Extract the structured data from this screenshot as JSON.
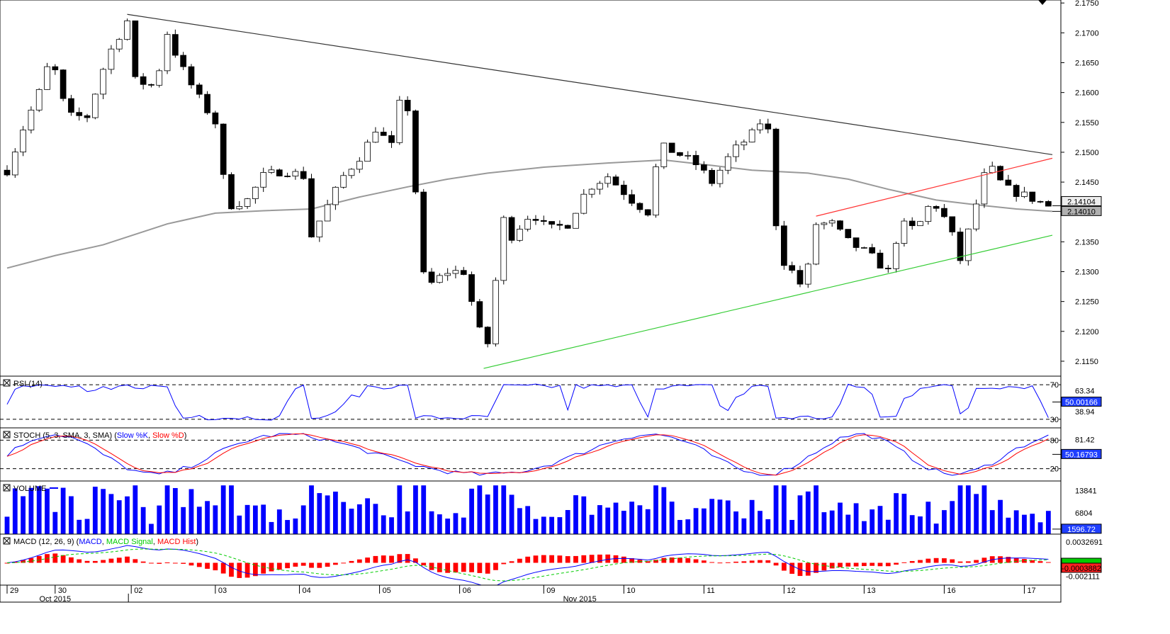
{
  "chart_data": [
    {
      "type": "candlestick",
      "instrument_panel": "price",
      "y_ticks": [
        "2.1750",
        "2.1700",
        "2.1650",
        "2.1600",
        "2.1550",
        "2.1500",
        "2.1450",
        "2.1350",
        "2.1300",
        "2.1250",
        "2.1200",
        "2.1150"
      ],
      "y_tick_values": [
        2.175,
        2.17,
        2.165,
        2.16,
        2.155,
        2.15,
        2.145,
        2.135,
        2.13,
        2.125,
        2.12,
        2.115
      ],
      "ylim": [
        2.1125,
        2.1755
      ],
      "price_labels": [
        {
          "text": "2.14104",
          "value": 2.14104,
          "style": "boxed"
        },
        {
          "text": "2.14010",
          "value": 2.1401,
          "style": "filled-gray"
        }
      ],
      "moving_average": [
        {
          "x": 0,
          "y": 2.1306
        },
        {
          "x": 0.6,
          "y": 2.1327
        },
        {
          "x": 1.2,
          "y": 2.1345
        },
        {
          "x": 2.0,
          "y": 2.138
        },
        {
          "x": 2.6,
          "y": 2.1398
        },
        {
          "x": 3.2,
          "y": 2.1402
        },
        {
          "x": 3.8,
          "y": 2.1405
        },
        {
          "x": 4.4,
          "y": 2.1425
        },
        {
          "x": 5.0,
          "y": 2.1442
        },
        {
          "x": 5.5,
          "y": 2.1455
        },
        {
          "x": 6.0,
          "y": 2.1465
        },
        {
          "x": 6.7,
          "y": 2.1475
        },
        {
          "x": 7.5,
          "y": 2.1482
        },
        {
          "x": 8.2,
          "y": 2.1487
        },
        {
          "x": 8.8,
          "y": 2.1478
        },
        {
          "x": 9.3,
          "y": 2.147
        },
        {
          "x": 10.0,
          "y": 2.1465
        },
        {
          "x": 10.5,
          "y": 2.1455
        },
        {
          "x": 11.0,
          "y": 2.1438
        },
        {
          "x": 11.6,
          "y": 2.142
        },
        {
          "x": 12.1,
          "y": 2.1412
        },
        {
          "x": 12.6,
          "y": 2.1405
        },
        {
          "x": 13.05,
          "y": 2.1401
        }
      ],
      "trend_lines": [
        {
          "name": "resistance",
          "color": "#333333",
          "x1": 1.5,
          "y1": 2.1731,
          "x2": 13.05,
          "y2": 2.1496
        },
        {
          "name": "lower-channel",
          "color": "#33cc33",
          "x1": 5.95,
          "y1": 2.1138,
          "x2": 13.05,
          "y2": 2.1361
        },
        {
          "name": "upper-channel",
          "color": "#ff3333",
          "x1": 10.1,
          "y1": 2.1393,
          "x2": 13.05,
          "y2": 2.149
        }
      ],
      "candles_per_day": 10,
      "day_anchors": [
        [
          0.0,
          2.147
        ],
        [
          0.2,
          2.154
        ],
        [
          0.4,
          2.16
        ],
        [
          0.55,
          2.166
        ],
        [
          0.75,
          2.156
        ],
        [
          1.0,
          2.156
        ],
        [
          1.25,
          2.166
        ],
        [
          1.5,
          2.172
        ],
        [
          1.6,
          2.162
        ],
        [
          1.85,
          2.161
        ],
        [
          2.0,
          2.17
        ],
        [
          2.15,
          2.165
        ],
        [
          2.35,
          2.16
        ],
        [
          2.6,
          2.155
        ],
        [
          2.75,
          2.141
        ],
        [
          3.0,
          2.142
        ],
        [
          3.2,
          2.146
        ],
        [
          3.45,
          2.147
        ],
        [
          3.7,
          2.146
        ],
        [
          3.8,
          2.136
        ],
        [
          4.0,
          2.141
        ],
        [
          4.2,
          2.146
        ],
        [
          4.45,
          2.15
        ],
        [
          4.6,
          2.154
        ],
        [
          4.8,
          2.151
        ],
        [
          4.9,
          2.158
        ],
        [
          5.05,
          2.157
        ],
        [
          5.15,
          2.13
        ],
        [
          5.3,
          2.128
        ],
        [
          5.5,
          2.13
        ],
        [
          5.7,
          2.13
        ],
        [
          5.9,
          2.12
        ],
        [
          6.05,
          2.117
        ],
        [
          6.15,
          2.14
        ],
        [
          6.3,
          2.136
        ],
        [
          6.55,
          2.14
        ],
        [
          6.75,
          2.137
        ],
        [
          7.0,
          2.138
        ],
        [
          7.25,
          2.144
        ],
        [
          7.5,
          2.146
        ],
        [
          7.8,
          2.142
        ],
        [
          8.0,
          2.14
        ],
        [
          8.15,
          2.151
        ],
        [
          8.35,
          2.15
        ],
        [
          8.6,
          2.148
        ],
        [
          8.8,
          2.145
        ],
        [
          9.05,
          2.15
        ],
        [
          9.3,
          2.153
        ],
        [
          9.45,
          2.156
        ],
        [
          9.55,
          2.151
        ],
        [
          9.62,
          2.133
        ],
        [
          9.8,
          2.13
        ],
        [
          9.95,
          2.127
        ],
        [
          10.1,
          2.138
        ],
        [
          10.3,
          2.138
        ],
        [
          10.5,
          2.135
        ],
        [
          10.75,
          2.133
        ],
        [
          11.0,
          2.13
        ],
        [
          11.15,
          2.138
        ],
        [
          11.35,
          2.137
        ],
        [
          11.55,
          2.142
        ],
        [
          11.75,
          2.138
        ],
        [
          11.9,
          2.132
        ],
        [
          12.05,
          2.139
        ],
        [
          12.2,
          2.146
        ],
        [
          12.3,
          2.147
        ],
        [
          12.45,
          2.144
        ],
        [
          12.65,
          2.143
        ],
        [
          12.85,
          2.142
        ],
        [
          13.0,
          2.141
        ]
      ]
    },
    {
      "type": "line",
      "instrument_panel": "rsi",
      "title": "RSI (14)",
      "y_ticks": [
        "70",
        "30"
      ],
      "y_tick_values": [
        70,
        30
      ],
      "ylim": [
        20,
        80
      ],
      "levels": [
        70,
        30
      ],
      "value_labels": [
        {
          "text": "63.34",
          "value": 63.34
        },
        {
          "text": "50.00166",
          "value": 50.00166,
          "style": "filled-blue"
        },
        {
          "text": "38.94",
          "value": 38.94
        }
      ]
    },
    {
      "type": "line",
      "instrument_panel": "stochastic",
      "title": "STOCH (5, 3, SMA, 3, SMA)",
      "legend": [
        {
          "name": "Slow %K",
          "color": "#0000ff"
        },
        {
          "name": "Slow %D",
          "color": "#ff0000"
        }
      ],
      "y_ticks": [
        "80",
        "20"
      ],
      "y_tick_values": [
        80,
        20
      ],
      "ylim": [
        0,
        100
      ],
      "levels": [
        80,
        20
      ],
      "value_labels": [
        {
          "text": "81.42",
          "value": 81.42
        },
        {
          "text": "50.16793",
          "value": 50.16793,
          "style": "filled-blue"
        }
      ]
    },
    {
      "type": "bar",
      "instrument_panel": "volume",
      "title": "VOLUME",
      "y_ticks": [
        "13841",
        "6804"
      ],
      "y_tick_values": [
        13841,
        6804
      ],
      "ylim": [
        0,
        16000
      ],
      "value_labels": [
        {
          "text": "1596.72",
          "value": 1596.72,
          "style": "filled-blue"
        }
      ]
    },
    {
      "type": "line",
      "instrument_panel": "macd",
      "title": "MACD (12, 26, 9)",
      "legend": [
        {
          "name": "MACD",
          "color": "#0000ff"
        },
        {
          "name": "MACD Signal",
          "color": "#00cc00"
        },
        {
          "name": "MACD Hist",
          "color": "#ff0000"
        }
      ],
      "y_ticks": [
        "0.0032691",
        "-0.002111"
      ],
      "y_tick_values": [
        0.0032691,
        -0.002111
      ],
      "ylim": [
        -0.0035,
        0.0045
      ],
      "value_labels": [
        {
          "text": "-0.0003882",
          "value": -0.0003882,
          "style": "filled-red"
        }
      ]
    }
  ],
  "x_axis": {
    "day_labels": [
      "29",
      "30",
      "02",
      "03",
      "04",
      "05",
      "06",
      "09",
      "10",
      "11",
      "12",
      "13",
      "16",
      "17"
    ],
    "day_positions": [
      0.0,
      0.6,
      1.55,
      2.6,
      3.65,
      4.65,
      5.65,
      6.7,
      7.7,
      8.7,
      9.7,
      10.7,
      11.7,
      12.7
    ],
    "month_labels": [
      "Oct 2015",
      "Nov 2015"
    ],
    "month_positions": [
      0.6,
      7.15
    ]
  },
  "colors": {
    "bull": "#ffffff",
    "bear": "#000000",
    "rsi": "#0000ff",
    "stoch_k": "#0000ff",
    "stoch_d": "#ff0000",
    "volume": "#0000ff",
    "macd": "#0000ff",
    "macd_signal": "#00cc00",
    "macd_hist": "#ff0000",
    "moving_average": "#999999"
  }
}
